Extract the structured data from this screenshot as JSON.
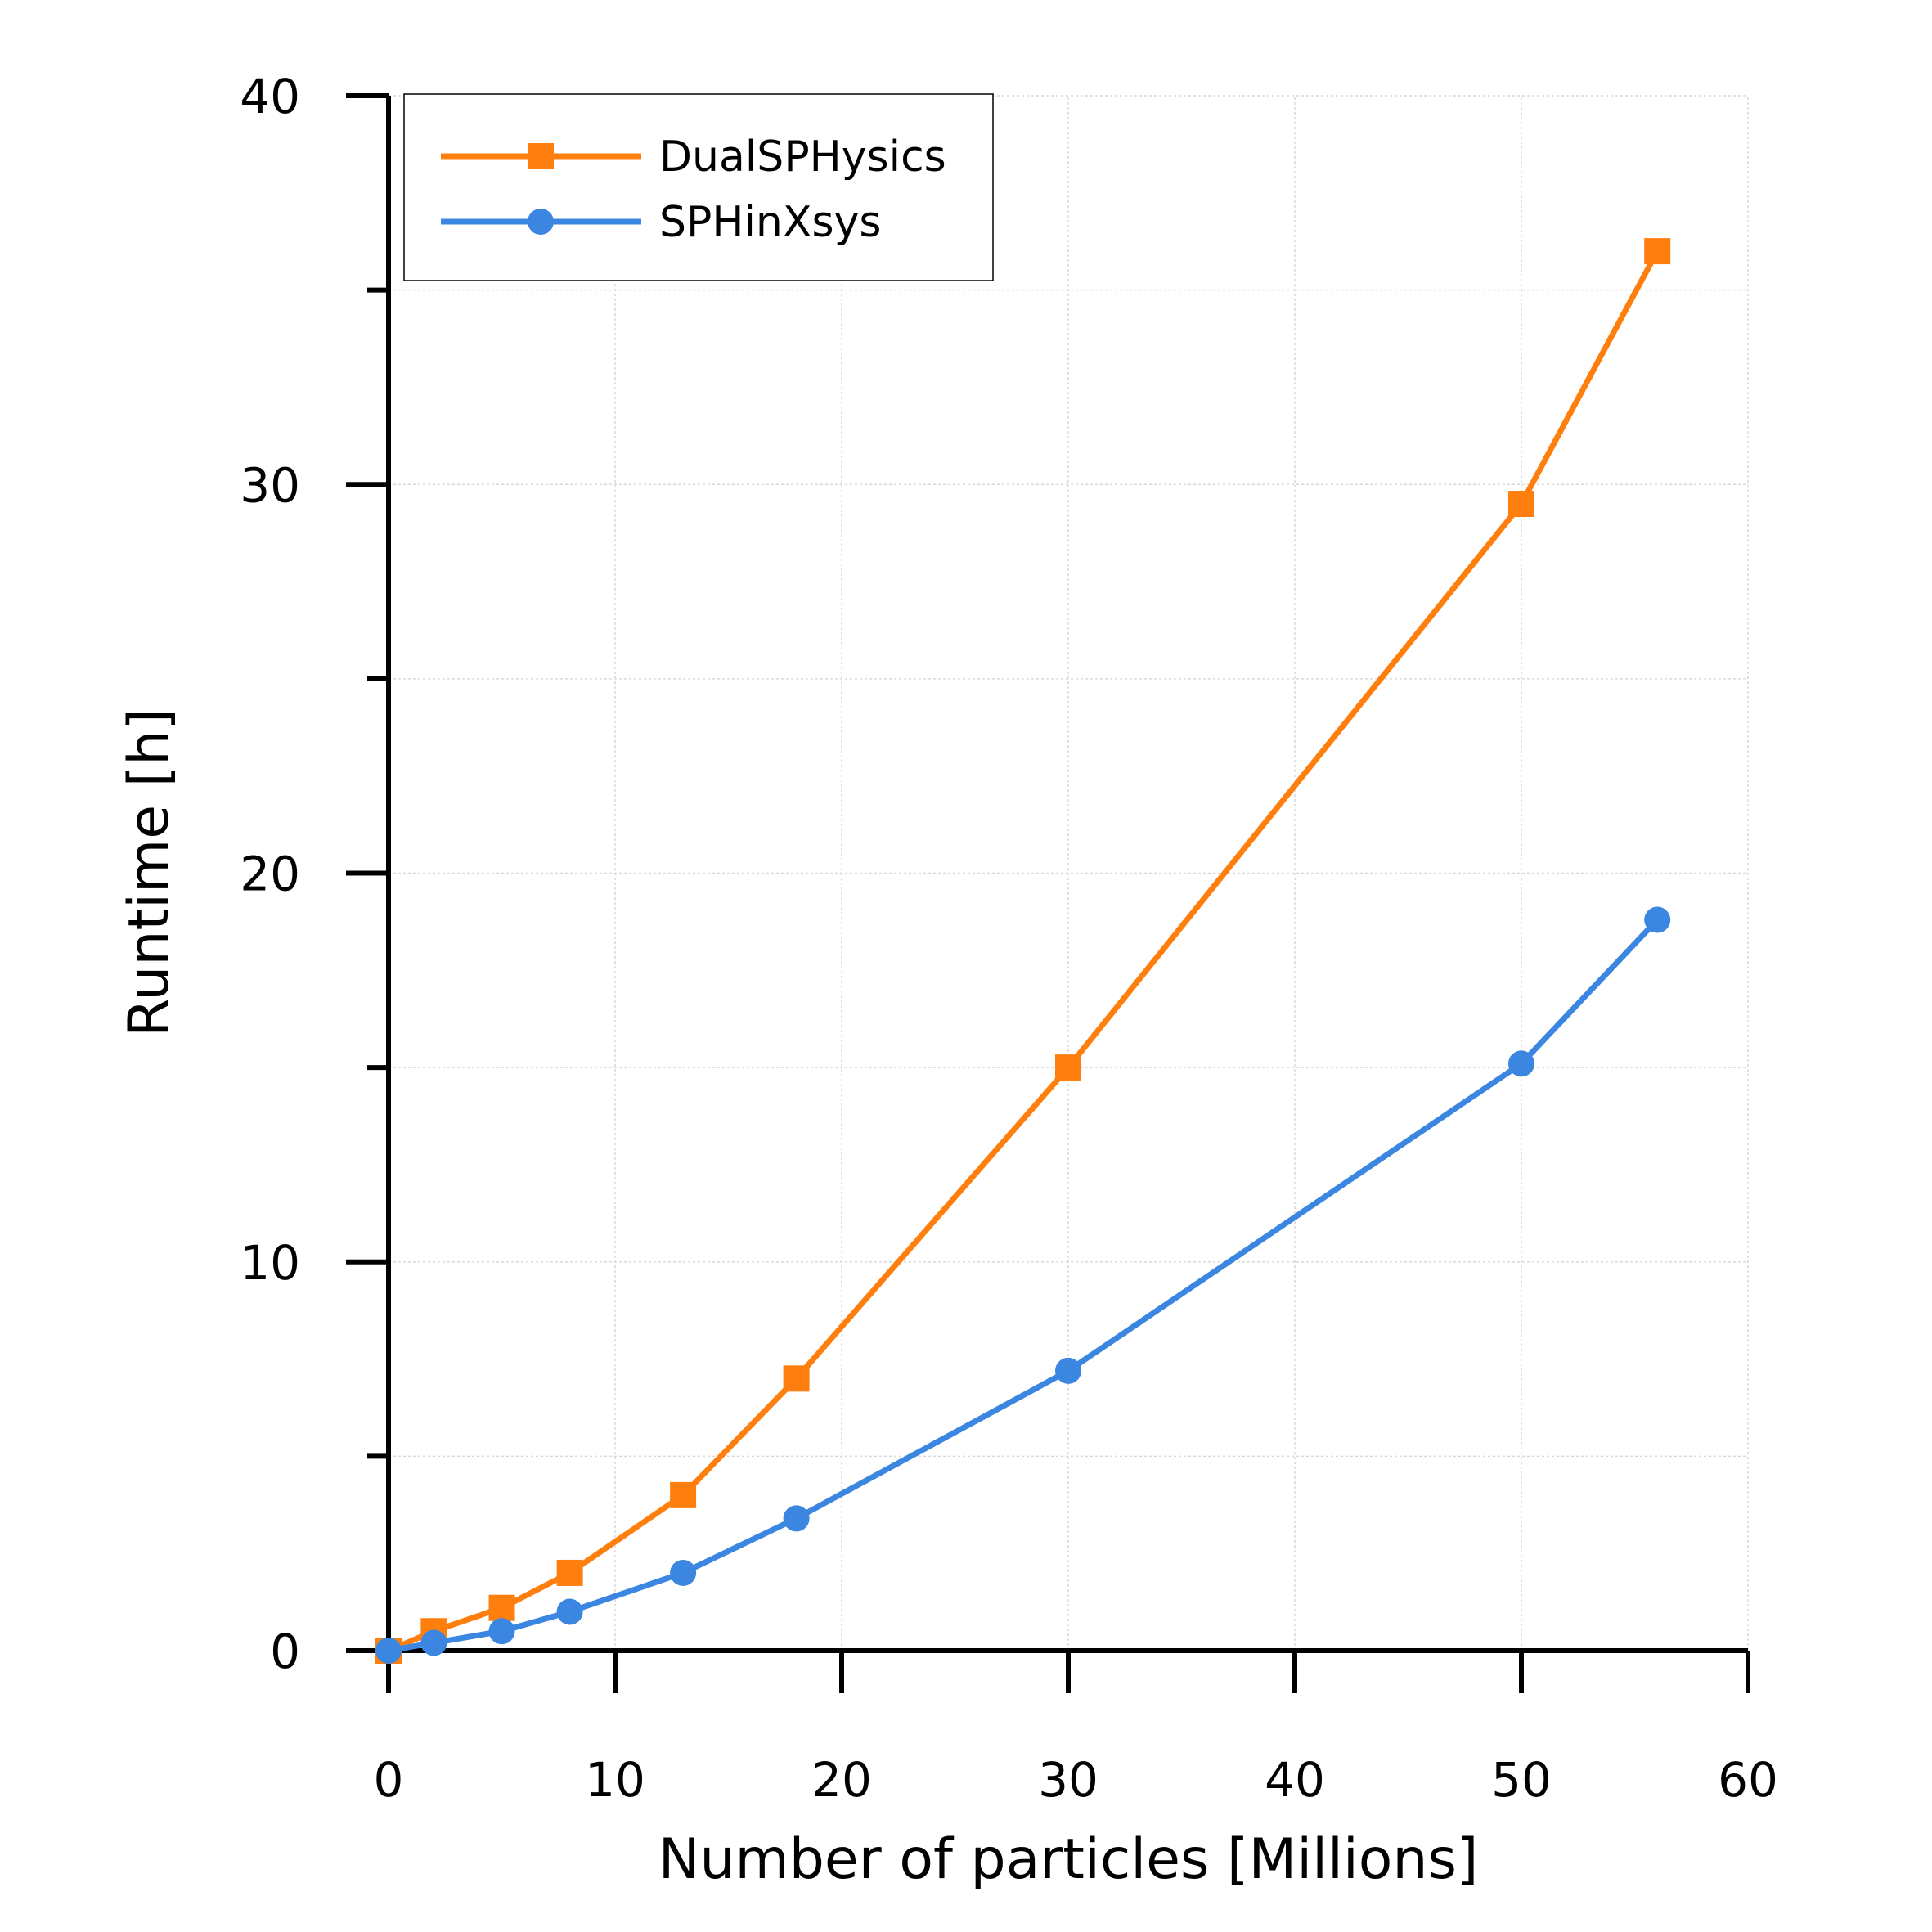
{
  "chart_data": {
    "type": "line",
    "xlabel": "Number of particles [Millions]",
    "ylabel": "Runtime [h]",
    "xlim": [
      0,
      60
    ],
    "ylim": [
      0,
      40
    ],
    "x_ticks": [
      0,
      10,
      20,
      30,
      40,
      50,
      60
    ],
    "y_ticks": [
      0,
      10,
      20,
      30,
      40
    ],
    "y_minor_ticks": [
      5,
      15,
      25,
      35
    ],
    "grid": true,
    "legend_position": "top-left",
    "series": [
      {
        "name": "DualSPHysics",
        "color": "#ff7f0e",
        "marker": "square",
        "x": [
          0,
          2,
          5,
          8,
          13,
          18,
          30,
          50,
          56
        ],
        "y": [
          0.0,
          0.5,
          1.1,
          2.0,
          4.0,
          7.0,
          15.0,
          29.5,
          36.0
        ]
      },
      {
        "name": "SPHinXsys",
        "color": "#3a86e0",
        "marker": "circle",
        "x": [
          0,
          2,
          5,
          8,
          13,
          18,
          30,
          50,
          56
        ],
        "y": [
          0.0,
          0.2,
          0.5,
          1.0,
          2.0,
          3.4,
          7.2,
          15.1,
          18.8
        ]
      }
    ]
  }
}
